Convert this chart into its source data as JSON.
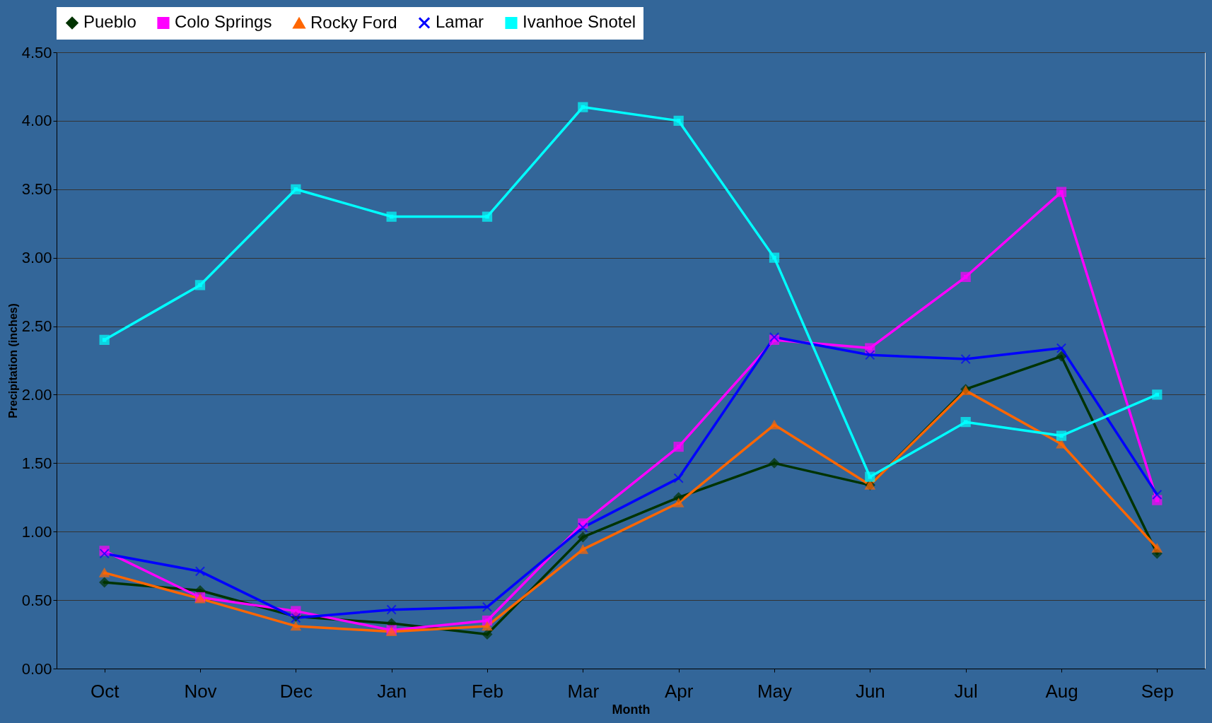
{
  "chart_data": {
    "type": "line",
    "xlabel": "Month",
    "ylabel": "Precipitation (inches)",
    "categories": [
      "Oct",
      "Nov",
      "Dec",
      "Jan",
      "Feb",
      "Mar",
      "Apr",
      "May",
      "Jun",
      "Jul",
      "Aug",
      "Sep"
    ],
    "series": [
      {
        "name": "Pueblo",
        "color": "#003300",
        "marker": "diamond",
        "values": [
          0.63,
          0.57,
          0.38,
          0.33,
          0.25,
          0.96,
          1.25,
          1.5,
          1.34,
          2.04,
          2.28,
          0.84
        ]
      },
      {
        "name": "Colo Springs",
        "color": "#ff00ff",
        "marker": "square",
        "values": [
          0.86,
          0.52,
          0.42,
          0.28,
          0.35,
          1.06,
          1.62,
          2.4,
          2.34,
          2.86,
          3.48,
          1.23
        ]
      },
      {
        "name": "Rocky Ford",
        "color": "#ff6600",
        "marker": "triangle",
        "values": [
          0.7,
          0.51,
          0.31,
          0.27,
          0.31,
          0.87,
          1.21,
          1.78,
          1.34,
          2.03,
          1.64,
          0.88
        ]
      },
      {
        "name": "Lamar",
        "color": "#0000ff",
        "marker": "cross",
        "values": [
          0.84,
          0.71,
          0.37,
          0.43,
          0.45,
          1.03,
          1.39,
          2.42,
          2.29,
          2.26,
          2.34,
          1.27
        ]
      },
      {
        "name": "Ivanhoe Snotel",
        "color": "#00ffff",
        "marker": "square",
        "values": [
          2.4,
          2.8,
          3.5,
          3.3,
          3.3,
          4.1,
          4.0,
          3.0,
          1.4,
          1.8,
          1.7,
          2.0
        ]
      }
    ],
    "ylim": [
      0,
      4.5
    ],
    "yticks": [
      {
        "value": 0,
        "label": "0.00"
      },
      {
        "value": 0.5,
        "label": "0.50"
      },
      {
        "value": 1,
        "label": "1.00"
      },
      {
        "value": 1.5,
        "label": "1.50"
      },
      {
        "value": 2,
        "label": "2.00"
      },
      {
        "value": 2.5,
        "label": "2.50"
      },
      {
        "value": 3,
        "label": "3.00"
      },
      {
        "value": 3.5,
        "label": "3.50"
      },
      {
        "value": 4,
        "label": "4.00"
      },
      {
        "value": 4.5,
        "label": "4.50"
      }
    ],
    "grid": "y",
    "legend": "top",
    "line_style": "solid"
  }
}
